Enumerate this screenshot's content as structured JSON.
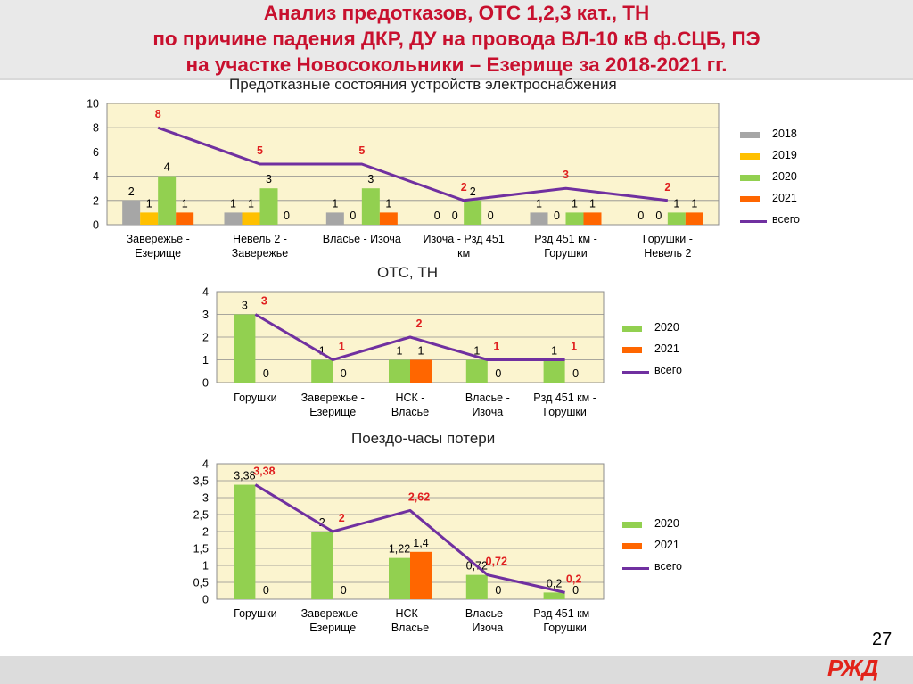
{
  "header": {
    "title_lines": [
      "Анализ предотказов, ОТС 1,2,3 кат., ТН",
      "по причине падения ДКР, ДУ на провода ВЛ-10 кВ ф.СЦБ, ПЭ",
      "на участке Новосокольники – Езерище за 2018-2021 гг."
    ]
  },
  "footer": {
    "page_number": "27",
    "logo": "РЖД"
  },
  "colors": {
    "title": "#c8102e",
    "plot_bg": "#fbf4cf",
    "s2018": "#a6a6a6",
    "s2019": "#ffc000",
    "s2020": "#92d050",
    "s2021": "#ff6600",
    "total_line": "#7030a0",
    "total_label": "#e02020"
  },
  "chart_data": [
    {
      "type": "bar",
      "title": "Предотказные состояния устройств электроснабжения",
      "categories": [
        [
          "Завережье -",
          "Езерище"
        ],
        [
          "Невель 2 -",
          "Завережье"
        ],
        [
          "Власье - Изоча"
        ],
        [
          "Изоча - Рзд 451",
          "км"
        ],
        [
          "Рзд 451 км -",
          "Горушки"
        ],
        [
          "Горушки -",
          "Невель 2"
        ]
      ],
      "ylim": [
        0,
        10
      ],
      "yticks": [
        "0",
        "2",
        "4",
        "6",
        "8",
        "10"
      ],
      "series": [
        {
          "name": "2018",
          "color": "#a6a6a6",
          "values": [
            2,
            1,
            1,
            0,
            1,
            0
          ]
        },
        {
          "name": "2019",
          "color": "#ffc000",
          "values": [
            1,
            1,
            0,
            0,
            0,
            0
          ]
        },
        {
          "name": "2020",
          "color": "#92d050",
          "values": [
            4,
            3,
            3,
            2,
            1,
            1
          ]
        },
        {
          "name": "2021",
          "color": "#ff6600",
          "values": [
            1,
            0,
            1,
            0,
            1,
            1
          ]
        }
      ],
      "total": {
        "name": "всего",
        "values": [
          8,
          5,
          5,
          2,
          3,
          2
        ]
      }
    },
    {
      "type": "bar",
      "title": "ОТС, ТН",
      "categories": [
        [
          "Горушки"
        ],
        [
          "Завережье -",
          "Езерище"
        ],
        [
          "НСК -",
          "Власье"
        ],
        [
          "Власье -",
          "Изоча"
        ],
        [
          "Рзд 451 км -",
          "Горушки"
        ]
      ],
      "ylim": [
        0,
        4
      ],
      "yticks": [
        "0",
        "1",
        "2",
        "3",
        "4"
      ],
      "series": [
        {
          "name": "2020",
          "color": "#92d050",
          "values": [
            3,
            1,
            1,
            1,
            1
          ]
        },
        {
          "name": "2021",
          "color": "#ff6600",
          "values": [
            0,
            0,
            1,
            0,
            0
          ]
        }
      ],
      "total": {
        "name": "всего",
        "values": [
          3,
          1,
          2,
          1,
          1
        ]
      }
    },
    {
      "type": "bar",
      "title": "Поездо-часы потери",
      "categories": [
        [
          "Горушки"
        ],
        [
          "Завережье -",
          "Езерище"
        ],
        [
          "НСК -",
          "Власье"
        ],
        [
          "Власье -",
          "Изоча"
        ],
        [
          "Рзд 451 км -",
          "Горушки"
        ]
      ],
      "ylim": [
        0,
        4
      ],
      "yticks": [
        "0",
        "0,5",
        "1",
        "1,5",
        "2",
        "2,5",
        "3",
        "3,5",
        "4"
      ],
      "series": [
        {
          "name": "2020",
          "color": "#92d050",
          "values": [
            3.38,
            2,
            1.22,
            0.72,
            0.2
          ]
        },
        {
          "name": "2021",
          "color": "#ff6600",
          "values": [
            0,
            0,
            1.4,
            0,
            0
          ]
        }
      ],
      "total": {
        "name": "всего",
        "values": [
          3.38,
          2,
          2.62,
          0.72,
          0.2
        ]
      }
    }
  ]
}
